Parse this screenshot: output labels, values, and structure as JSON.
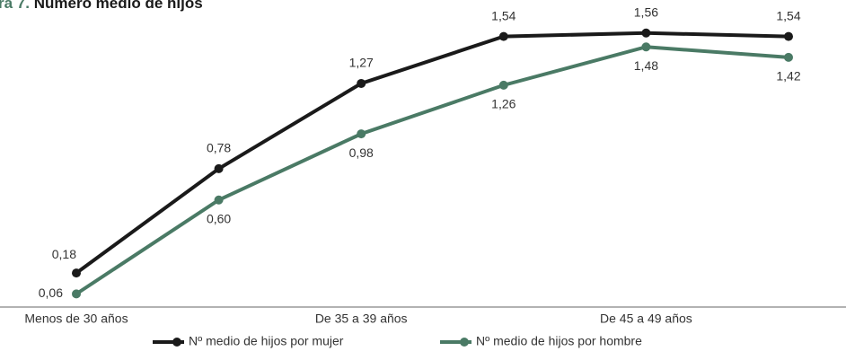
{
  "chart_data": {
    "type": "line",
    "title_label": "ra 7.",
    "title": "Número medio de hijos",
    "categories": [
      "Menos de 30 años",
      null,
      "De 35 a 39 años",
      null,
      "De 45 a 49 años",
      null
    ],
    "series": [
      {
        "name": "Nº medio de hijos por mujer",
        "color": "#1a1a1a",
        "values": [
          0.18,
          0.78,
          1.27,
          1.54,
          1.56,
          1.54
        ],
        "value_labels": [
          "0,18",
          "0,78",
          "1,27",
          "1,54",
          "1,56",
          "1,54"
        ]
      },
      {
        "name": "Nº medio de hijos por hombre",
        "color": "#4a7a65",
        "values": [
          0.06,
          0.6,
          0.98,
          1.26,
          1.48,
          1.42
        ],
        "value_labels": [
          "0,06",
          "0,60",
          "0,98",
          "1,26",
          "1,48",
          "1,42"
        ]
      }
    ],
    "ylim": [
      0,
      1.6
    ]
  }
}
